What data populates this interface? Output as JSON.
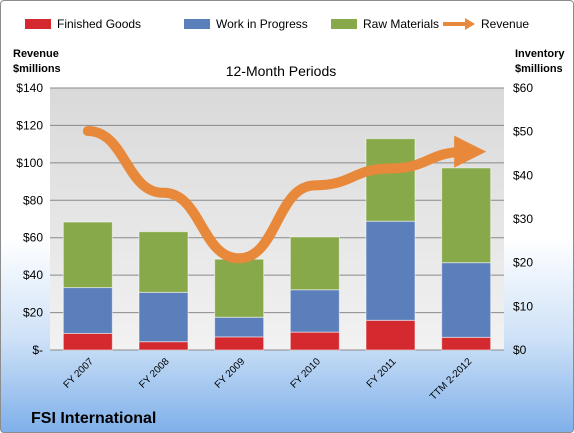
{
  "chart_data": {
    "type": "bar",
    "stacked": true,
    "title": "12-Month Periods",
    "company": "FSI International",
    "categories": [
      "FY 2007",
      "FY 2008",
      "FY 2009",
      "FY 2010",
      "FY 2011",
      "TTM 2-2012"
    ],
    "series": [
      {
        "name": "Finished Goods",
        "axis": "right",
        "color": "#d42a2f",
        "values": [
          3.8,
          1.9,
          3.0,
          4.1,
          6.8,
          2.9
        ]
      },
      {
        "name": "Work in Progress",
        "axis": "right",
        "color": "#5b7fba",
        "values": [
          10.5,
          11.3,
          4.5,
          9.7,
          22.7,
          17.1
        ]
      },
      {
        "name": "Raw Materials",
        "axis": "right",
        "color": "#88a94a",
        "values": [
          15.0,
          13.9,
          13.3,
          12.1,
          18.9,
          21.7
        ]
      },
      {
        "name": "Revenue",
        "axis": "left",
        "type": "line",
        "color": "#e8883a",
        "values": [
          117,
          84,
          49,
          88,
          97,
          106
        ]
      }
    ],
    "y_left": {
      "label_line1": "Revenue",
      "label_line2": "$millions",
      "min": 0,
      "max": 140,
      "step": 20,
      "tick_labels": [
        "$-",
        "$20",
        "$40",
        "$60",
        "$80",
        "$100",
        "$120",
        "$140"
      ]
    },
    "y_right": {
      "label_line1": "Inventory",
      "label_line2": "$millions",
      "min": 0,
      "max": 60,
      "step": 10,
      "tick_labels": [
        "$0",
        "$10",
        "$20",
        "$30",
        "$40",
        "$50",
        "$60"
      ]
    },
    "grid": true,
    "legend_position": "top"
  }
}
